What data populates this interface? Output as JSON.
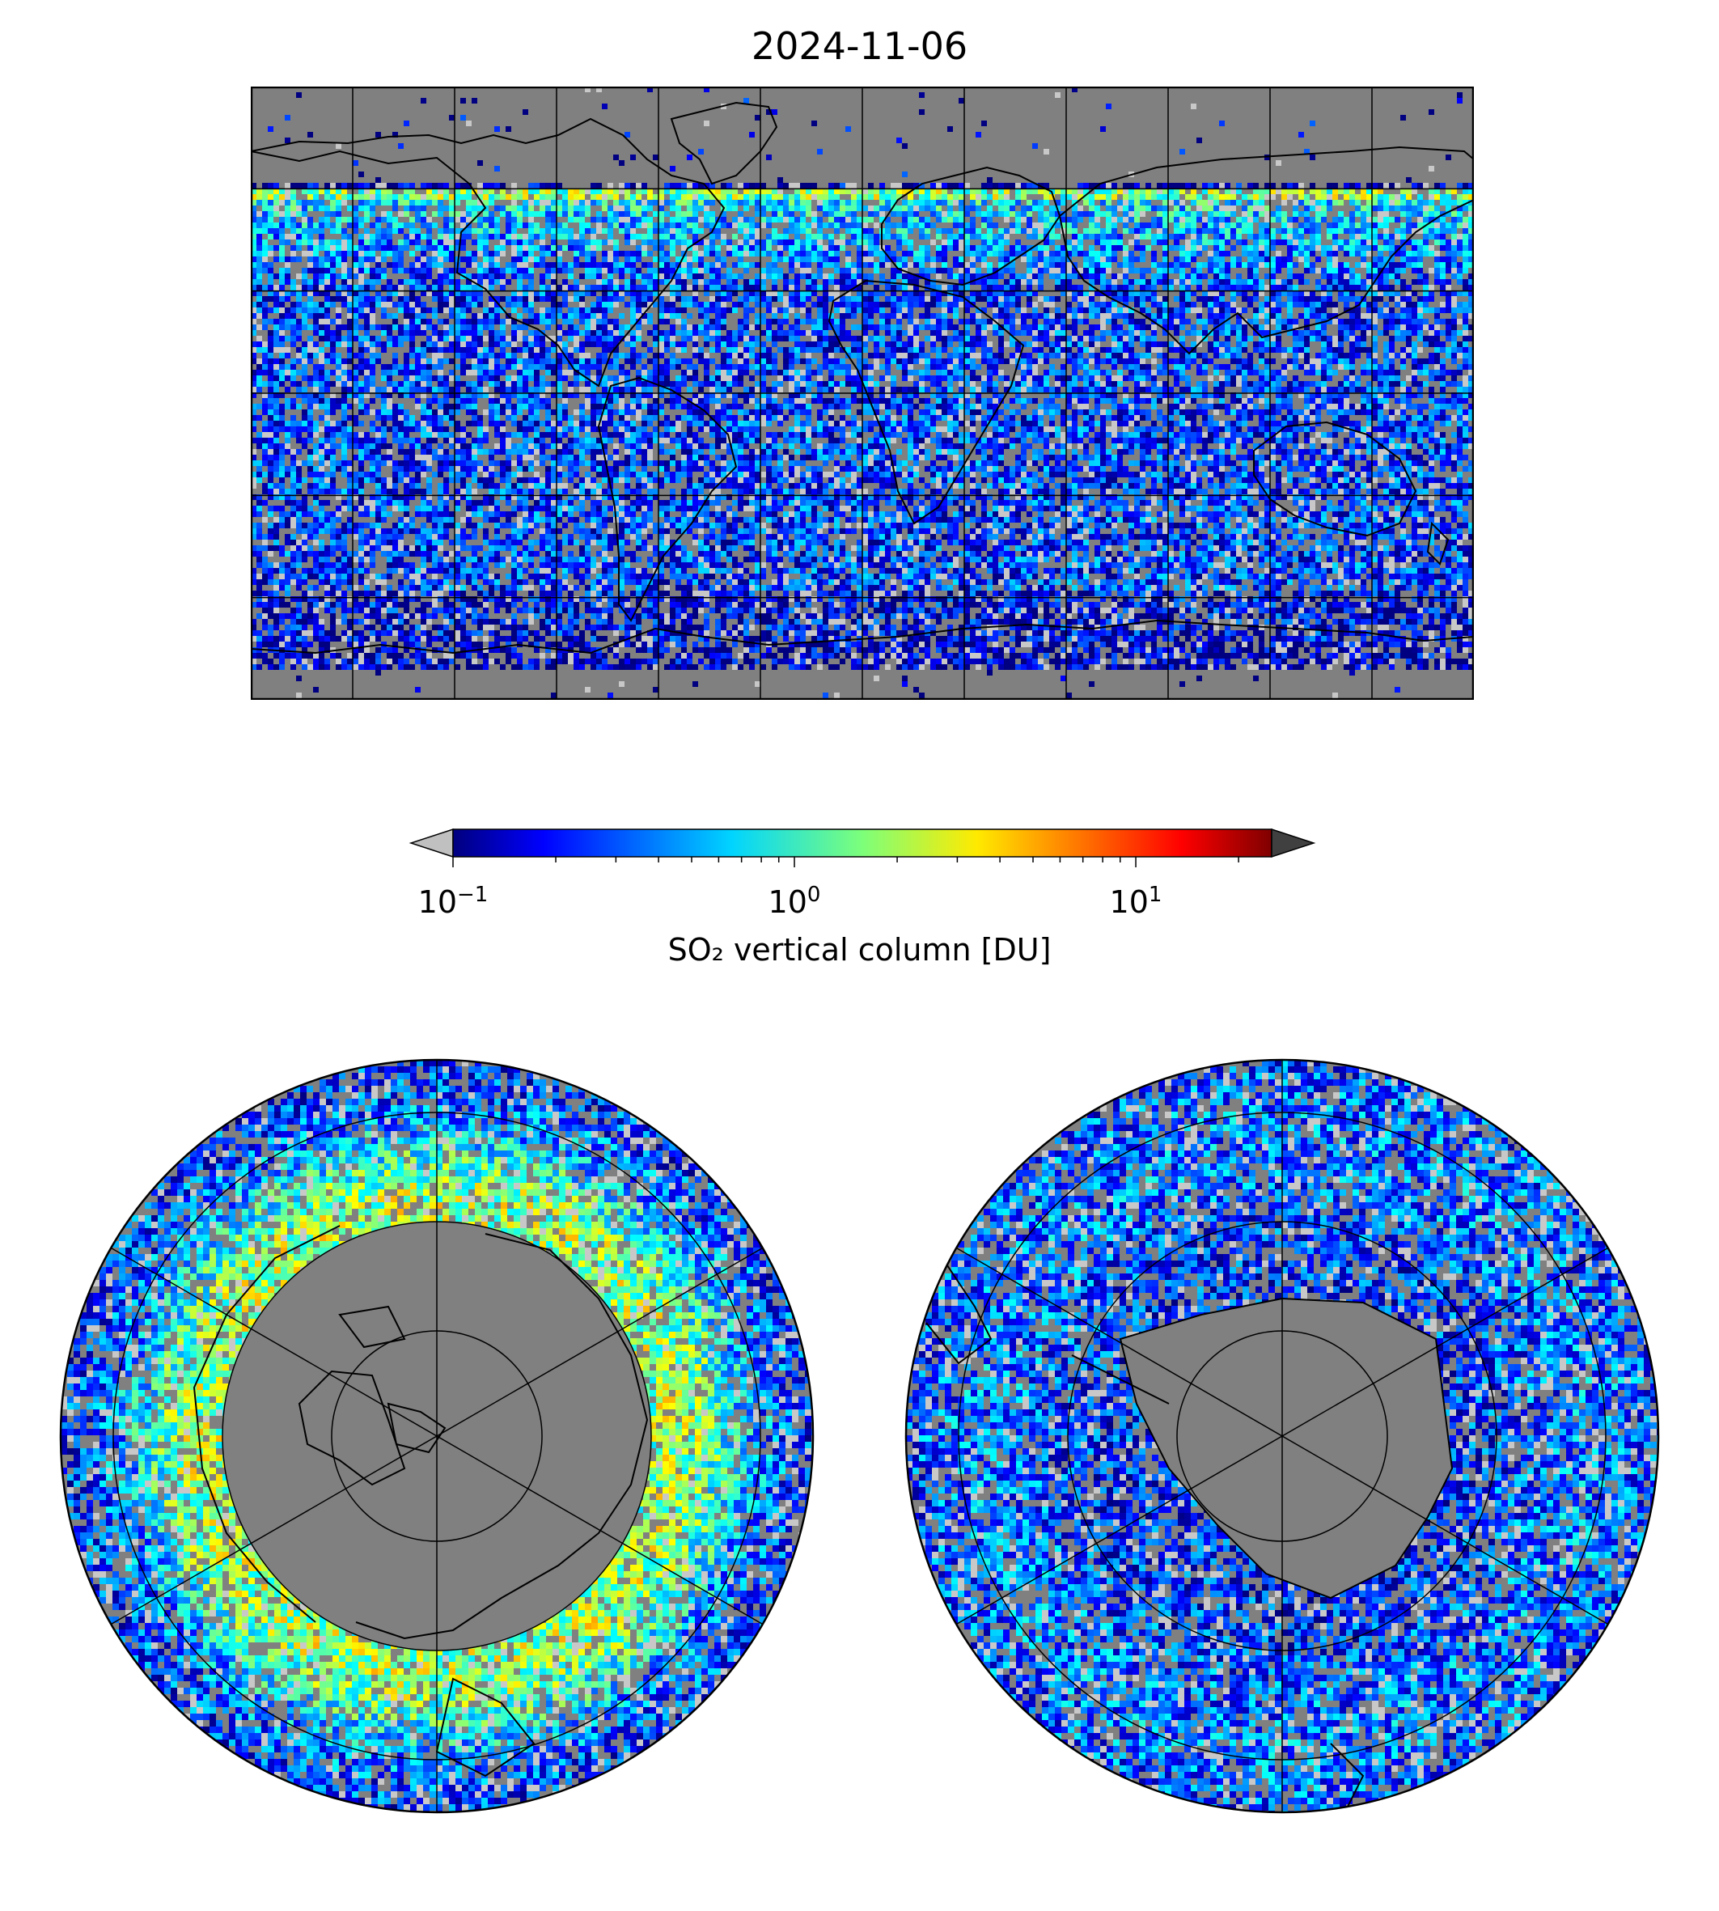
{
  "title": "2024-11-06",
  "colorbar": {
    "label": "SO₂ vertical column [DU]",
    "scale": "log",
    "range": [
      0.1,
      25
    ],
    "ticks": [
      {
        "base": "10",
        "exp": "−1",
        "value": 0.1
      },
      {
        "base": "10",
        "exp": "0",
        "value": 1
      },
      {
        "base": "10",
        "exp": "1",
        "value": 10
      }
    ],
    "colormap": "jet",
    "under_color": "#c0c0c0",
    "over_color": "#404040",
    "extend": "both"
  },
  "maps": {
    "global": {
      "projection": "plate-carree",
      "gridlines": true,
      "coastlines": true,
      "background": "#808080"
    },
    "north": {
      "projection": "north-polar-stereographic",
      "gridlines": true,
      "coastlines": true
    },
    "south": {
      "projection": "south-polar-stereographic",
      "gridlines": true,
      "coastlines": true
    }
  },
  "colors": {
    "nodata": "#808080",
    "frame": "#000000"
  }
}
